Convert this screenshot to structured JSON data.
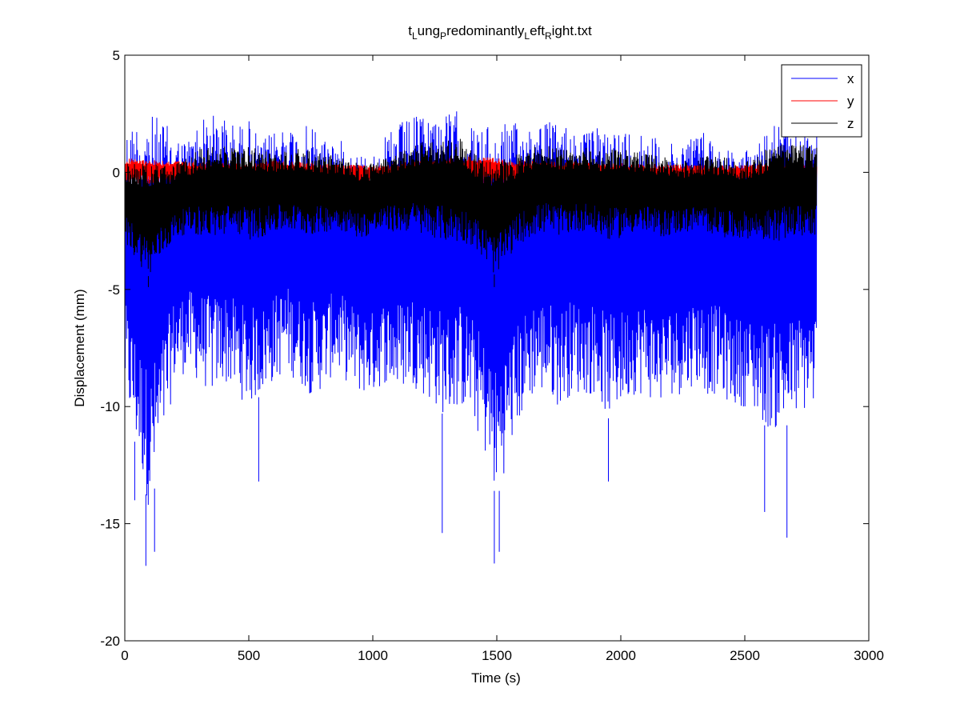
{
  "chart_data": {
    "type": "line",
    "title_parts": [
      {
        "text": "t",
        "sub": false
      },
      {
        "text": "L",
        "sub": true
      },
      {
        "text": "ung",
        "sub": false
      },
      {
        "text": "P",
        "sub": true
      },
      {
        "text": "redominantly",
        "sub": false
      },
      {
        "text": "L",
        "sub": true
      },
      {
        "text": "eft",
        "sub": false
      },
      {
        "text": "R",
        "sub": true
      },
      {
        "text": "ight.txt",
        "sub": false
      }
    ],
    "xlabel": "Time (s)",
    "ylabel": "Displacement (mm)",
    "xlim": [
      0,
      3000
    ],
    "ylim": [
      -20,
      5
    ],
    "xticks": [
      0,
      500,
      1000,
      1500,
      2000,
      2500,
      3000
    ],
    "yticks": [
      -20,
      -15,
      -10,
      -5,
      0,
      5
    ],
    "grid": false,
    "legend_position": "top-right",
    "x_end": 2790,
    "series": [
      {
        "name": "x",
        "color": "#0000ff",
        "upper_envelope": [
          [
            0,
            1.8
          ],
          [
            50,
            2.3
          ],
          [
            100,
            2.5
          ],
          [
            150,
            2.3
          ],
          [
            200,
            1.6
          ],
          [
            250,
            1.4
          ],
          [
            300,
            2.3
          ],
          [
            350,
            2.5
          ],
          [
            400,
            2.4
          ],
          [
            450,
            2.0
          ],
          [
            500,
            2.3
          ],
          [
            550,
            1.3
          ],
          [
            600,
            1.8
          ],
          [
            650,
            2.2
          ],
          [
            700,
            1.8
          ],
          [
            750,
            2.1
          ],
          [
            800,
            1.6
          ],
          [
            850,
            1.5
          ],
          [
            900,
            1.2
          ],
          [
            950,
            0.9
          ],
          [
            1000,
            0.8
          ],
          [
            1050,
            1.5
          ],
          [
            1100,
            2.1
          ],
          [
            1150,
            2.3
          ],
          [
            1200,
            2.5
          ],
          [
            1250,
            2.6
          ],
          [
            1300,
            2.5
          ],
          [
            1350,
            2.7
          ],
          [
            1400,
            2.0
          ],
          [
            1450,
            1.9
          ],
          [
            1500,
            2.1
          ],
          [
            1550,
            2.2
          ],
          [
            1600,
            2.0
          ],
          [
            1650,
            2.4
          ],
          [
            1700,
            2.3
          ],
          [
            1750,
            2.0
          ],
          [
            1800,
            2.2
          ],
          [
            1850,
            1.7
          ],
          [
            1900,
            1.9
          ],
          [
            1950,
            2.1
          ],
          [
            2000,
            1.8
          ],
          [
            2050,
            2.0
          ],
          [
            2100,
            1.9
          ],
          [
            2150,
            1.4
          ],
          [
            2200,
            1.2
          ],
          [
            2250,
            1.5
          ],
          [
            2300,
            1.8
          ],
          [
            2350,
            1.8
          ],
          [
            2400,
            1.3
          ],
          [
            2450,
            1.0
          ],
          [
            2500,
            0.9
          ],
          [
            2550,
            1.6
          ],
          [
            2600,
            2.1
          ],
          [
            2650,
            2.2
          ],
          [
            2700,
            2.0
          ],
          [
            2790,
            1.8
          ]
        ],
        "lower_envelope": [
          [
            0,
            -9.5
          ],
          [
            50,
            -12
          ],
          [
            100,
            -14.5
          ],
          [
            150,
            -12
          ],
          [
            200,
            -9
          ],
          [
            250,
            -8.5
          ],
          [
            300,
            -9
          ],
          [
            350,
            -9.5
          ],
          [
            400,
            -9
          ],
          [
            450,
            -9.5
          ],
          [
            500,
            -10
          ],
          [
            550,
            -9.5
          ],
          [
            600,
            -9
          ],
          [
            650,
            -8.5
          ],
          [
            700,
            -9
          ],
          [
            750,
            -9.5
          ],
          [
            800,
            -9.3
          ],
          [
            850,
            -8.5
          ],
          [
            900,
            -9
          ],
          [
            950,
            -9.5
          ],
          [
            1000,
            -9.5
          ],
          [
            1050,
            -9
          ],
          [
            1100,
            -9.5
          ],
          [
            1150,
            -9
          ],
          [
            1200,
            -9.5
          ],
          [
            1250,
            -10
          ],
          [
            1300,
            -10.5
          ],
          [
            1350,
            -10
          ],
          [
            1400,
            -10.5
          ],
          [
            1450,
            -12
          ],
          [
            1500,
            -14
          ],
          [
            1550,
            -12
          ],
          [
            1600,
            -10.5
          ],
          [
            1650,
            -9.5
          ],
          [
            1700,
            -9.5
          ],
          [
            1750,
            -10
          ],
          [
            1800,
            -9.5
          ],
          [
            1850,
            -9.5
          ],
          [
            1900,
            -9.5
          ],
          [
            1950,
            -10.5
          ],
          [
            2000,
            -10
          ],
          [
            2050,
            -9.5
          ],
          [
            2100,
            -9.5
          ],
          [
            2150,
            -10
          ],
          [
            2200,
            -9.5
          ],
          [
            2250,
            -9.5
          ],
          [
            2300,
            -9
          ],
          [
            2350,
            -9.5
          ],
          [
            2400,
            -9.5
          ],
          [
            2450,
            -10
          ],
          [
            2500,
            -10
          ],
          [
            2550,
            -10.5
          ],
          [
            2600,
            -11
          ],
          [
            2650,
            -11
          ],
          [
            2700,
            -10.5
          ],
          [
            2790,
            -10
          ]
        ],
        "spikes": [
          [
            85,
            -16.8
          ],
          [
            120,
            -16.2
          ],
          [
            540,
            -13.2
          ],
          [
            1490,
            -16.7
          ],
          [
            1510,
            -16.2
          ],
          [
            1950,
            -13.2
          ],
          [
            2670,
            -15.6
          ],
          [
            1280,
            -15.4
          ],
          [
            2580,
            -14.5
          ],
          [
            40,
            -14.0
          ]
        ]
      },
      {
        "name": "y",
        "color": "#ff0000",
        "upper_envelope": [
          [
            0,
            0.6
          ],
          [
            200,
            0.5
          ],
          [
            400,
            0.4
          ],
          [
            600,
            0.5
          ],
          [
            1000,
            0.3
          ],
          [
            1400,
            0.7
          ],
          [
            1600,
            0.5
          ],
          [
            2000,
            0.4
          ],
          [
            2400,
            0.3
          ],
          [
            2790,
            0.4
          ]
        ],
        "lower_envelope": [
          [
            0,
            -0.5
          ],
          [
            400,
            -0.5
          ],
          [
            800,
            -0.5
          ],
          [
            1200,
            -0.6
          ],
          [
            1600,
            -0.5
          ],
          [
            2000,
            -0.5
          ],
          [
            2400,
            -0.5
          ],
          [
            2790,
            -0.5
          ]
        ]
      },
      {
        "name": "z",
        "color": "#000000",
        "upper_envelope": [
          [
            0,
            0.4
          ],
          [
            50,
            0.5
          ],
          [
            100,
            0.4
          ],
          [
            150,
            0.3
          ],
          [
            200,
            0.4
          ],
          [
            250,
            0.6
          ],
          [
            300,
            1.0
          ],
          [
            350,
            1.1
          ],
          [
            400,
            1.1
          ],
          [
            450,
            1.0
          ],
          [
            500,
            1.1
          ],
          [
            550,
            1.0
          ],
          [
            600,
            0.8
          ],
          [
            650,
            0.9
          ],
          [
            700,
            1.0
          ],
          [
            750,
            0.9
          ],
          [
            800,
            0.8
          ],
          [
            850,
            0.7
          ],
          [
            900,
            0.5
          ],
          [
            950,
            0.4
          ],
          [
            1000,
            0.4
          ],
          [
            1050,
            0.6
          ],
          [
            1100,
            0.9
          ],
          [
            1150,
            1.1
          ],
          [
            1200,
            1.3
          ],
          [
            1250,
            1.4
          ],
          [
            1300,
            1.4
          ],
          [
            1350,
            1.5
          ],
          [
            1400,
            0.9
          ],
          [
            1450,
            0.5
          ],
          [
            1500,
            0.5
          ],
          [
            1550,
            0.6
          ],
          [
            1600,
            0.9
          ],
          [
            1650,
            1.1
          ],
          [
            1700,
            1.2
          ],
          [
            1750,
            1.0
          ],
          [
            1800,
            1.0
          ],
          [
            1850,
            1.1
          ],
          [
            1900,
            0.9
          ],
          [
            1950,
            1.0
          ],
          [
            2000,
            1.0
          ],
          [
            2050,
            0.9
          ],
          [
            2100,
            0.8
          ],
          [
            2150,
            0.7
          ],
          [
            2200,
            0.6
          ],
          [
            2250,
            0.5
          ],
          [
            2300,
            0.6
          ],
          [
            2350,
            0.7
          ],
          [
            2400,
            0.7
          ],
          [
            2450,
            0.6
          ],
          [
            2500,
            0.5
          ],
          [
            2550,
            0.7
          ],
          [
            2600,
            1.1
          ],
          [
            2650,
            1.2
          ],
          [
            2700,
            1.2
          ],
          [
            2790,
            1.1
          ]
        ],
        "lower_envelope": [
          [
            0,
            -3
          ],
          [
            50,
            -3.8
          ],
          [
            100,
            -4.5
          ],
          [
            150,
            -3.6
          ],
          [
            200,
            -2.9
          ],
          [
            250,
            -2.6
          ],
          [
            300,
            -2.7
          ],
          [
            350,
            -2.8
          ],
          [
            400,
            -2.7
          ],
          [
            450,
            -2.6
          ],
          [
            500,
            -2.9
          ],
          [
            550,
            -2.8
          ],
          [
            600,
            -2.6
          ],
          [
            650,
            -2.5
          ],
          [
            700,
            -2.6
          ],
          [
            750,
            -2.7
          ],
          [
            800,
            -2.6
          ],
          [
            850,
            -2.4
          ],
          [
            900,
            -2.6
          ],
          [
            950,
            -2.8
          ],
          [
            1000,
            -2.7
          ],
          [
            1050,
            -2.5
          ],
          [
            1100,
            -2.6
          ],
          [
            1150,
            -2.5
          ],
          [
            1200,
            -2.7
          ],
          [
            1250,
            -2.8
          ],
          [
            1300,
            -3.0
          ],
          [
            1350,
            -3.0
          ],
          [
            1400,
            -3.1
          ],
          [
            1450,
            -3.8
          ],
          [
            1500,
            -4.5
          ],
          [
            1550,
            -3.6
          ],
          [
            1600,
            -3.0
          ],
          [
            1650,
            -2.7
          ],
          [
            1700,
            -2.6
          ],
          [
            1750,
            -2.7
          ],
          [
            1800,
            -2.6
          ],
          [
            1850,
            -2.5
          ],
          [
            1900,
            -2.7
          ],
          [
            1950,
            -2.9
          ],
          [
            2000,
            -2.8
          ],
          [
            2050,
            -2.6
          ],
          [
            2100,
            -2.6
          ],
          [
            2150,
            -2.8
          ],
          [
            2200,
            -2.7
          ],
          [
            2250,
            -2.6
          ],
          [
            2300,
            -2.5
          ],
          [
            2350,
            -2.6
          ],
          [
            2400,
            -2.7
          ],
          [
            2450,
            -2.9
          ],
          [
            2500,
            -2.8
          ],
          [
            2550,
            -2.9
          ],
          [
            2600,
            -3.0
          ],
          [
            2650,
            -2.9
          ],
          [
            2700,
            -2.8
          ],
          [
            2790,
            -2.7
          ]
        ],
        "spikes": [
          [
            95,
            -4.9
          ],
          [
            1490,
            -4.9
          ]
        ]
      }
    ]
  }
}
